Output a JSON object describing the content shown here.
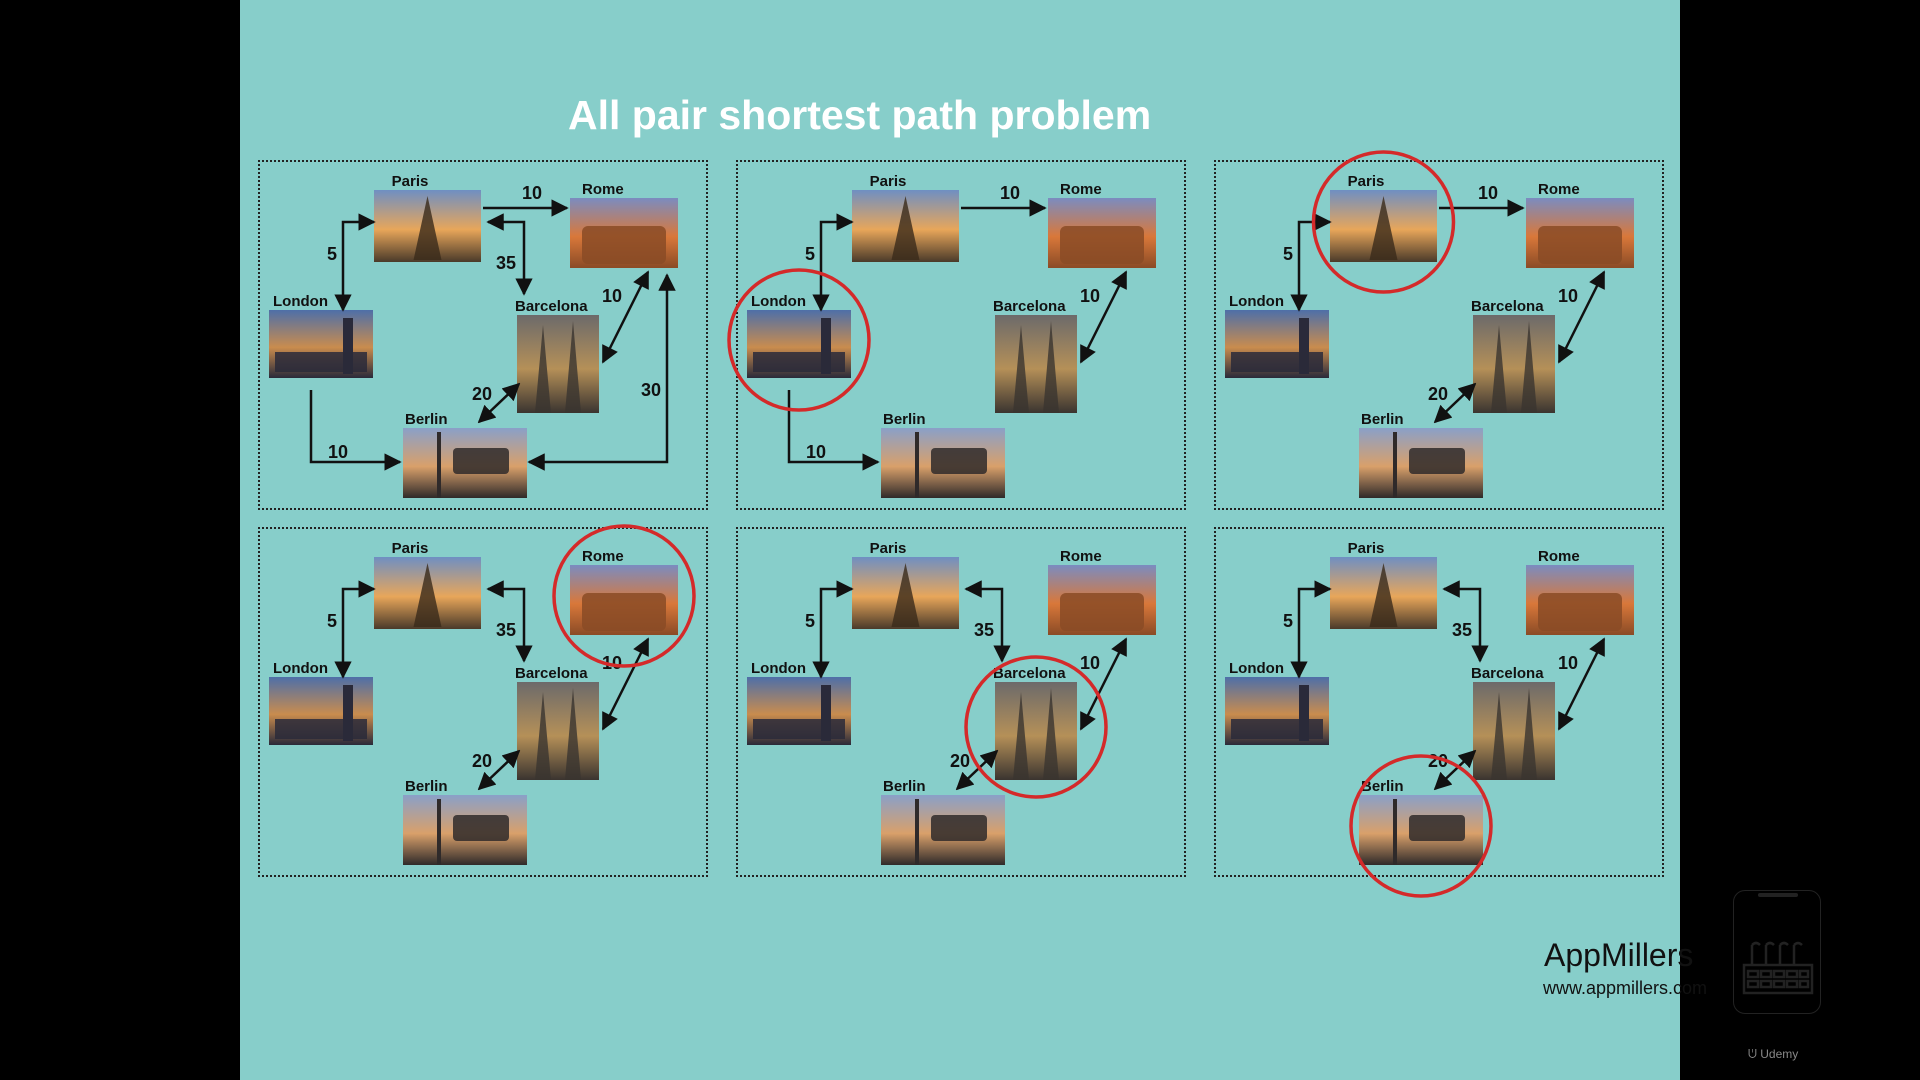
{
  "slide": {
    "title": "All pair shortest path problem",
    "background": "#87CECA",
    "highlight_color": "#D42A2A"
  },
  "cities": [
    "Paris",
    "Rome",
    "London",
    "Barcelona",
    "Berlin"
  ],
  "panels": [
    {
      "highlight": null,
      "edges": [
        {
          "from": "Paris",
          "to": "Rome",
          "weight": "10",
          "dir": "one"
        },
        {
          "from": "Paris",
          "to": "London",
          "weight": "5",
          "dir": "both"
        },
        {
          "from": "Paris",
          "to": "Barcelona",
          "weight": "35",
          "dir": "both"
        },
        {
          "from": "Barcelona",
          "to": "Rome",
          "weight": "10",
          "dir": "both"
        },
        {
          "from": "Barcelona",
          "to": "Berlin",
          "weight": "20",
          "dir": "both"
        },
        {
          "from": "London",
          "to": "Berlin",
          "weight": "10",
          "dir": "one"
        },
        {
          "from": "Berlin",
          "to": "Rome",
          "weight": "30",
          "dir": "both"
        }
      ]
    },
    {
      "highlight": "London",
      "edges": [
        {
          "from": "Paris",
          "to": "Rome",
          "weight": "10",
          "dir": "one"
        },
        {
          "from": "Paris",
          "to": "London",
          "weight": "5",
          "dir": "both"
        },
        {
          "from": "Barcelona",
          "to": "Rome",
          "weight": "10",
          "dir": "both"
        },
        {
          "from": "London",
          "to": "Berlin",
          "weight": "10",
          "dir": "one"
        }
      ]
    },
    {
      "highlight": "Paris",
      "edges": [
        {
          "from": "Paris",
          "to": "Rome",
          "weight": "10",
          "dir": "one"
        },
        {
          "from": "Paris",
          "to": "London",
          "weight": "5",
          "dir": "both"
        },
        {
          "from": "Barcelona",
          "to": "Rome",
          "weight": "10",
          "dir": "both"
        },
        {
          "from": "Barcelona",
          "to": "Berlin",
          "weight": "20",
          "dir": "both"
        }
      ]
    },
    {
      "highlight": "Rome",
      "edges": [
        {
          "from": "Paris",
          "to": "London",
          "weight": "5",
          "dir": "both"
        },
        {
          "from": "Paris",
          "to": "Barcelona",
          "weight": "35",
          "dir": "both"
        },
        {
          "from": "Barcelona",
          "to": "Rome",
          "weight": "10",
          "dir": "both"
        },
        {
          "from": "Barcelona",
          "to": "Berlin",
          "weight": "20",
          "dir": "both"
        }
      ]
    },
    {
      "highlight": "Barcelona",
      "edges": [
        {
          "from": "Paris",
          "to": "London",
          "weight": "5",
          "dir": "both"
        },
        {
          "from": "Paris",
          "to": "Barcelona",
          "weight": "35",
          "dir": "both"
        },
        {
          "from": "Barcelona",
          "to": "Rome",
          "weight": "10",
          "dir": "both"
        },
        {
          "from": "Barcelona",
          "to": "Berlin",
          "weight": "20",
          "dir": "both"
        }
      ]
    },
    {
      "highlight": "Berlin",
      "edges": [
        {
          "from": "Paris",
          "to": "London",
          "weight": "5",
          "dir": "both"
        },
        {
          "from": "Paris",
          "to": "Barcelona",
          "weight": "35",
          "dir": "both"
        },
        {
          "from": "Barcelona",
          "to": "Rome",
          "weight": "10",
          "dir": "both"
        },
        {
          "from": "Barcelona",
          "to": "Berlin",
          "weight": "20",
          "dir": "both"
        }
      ]
    }
  ],
  "branding": {
    "name": "AppMillers",
    "url": "www.appmillers.com",
    "logo_icon": "factory-phone-icon",
    "watermark": "Udemy"
  }
}
